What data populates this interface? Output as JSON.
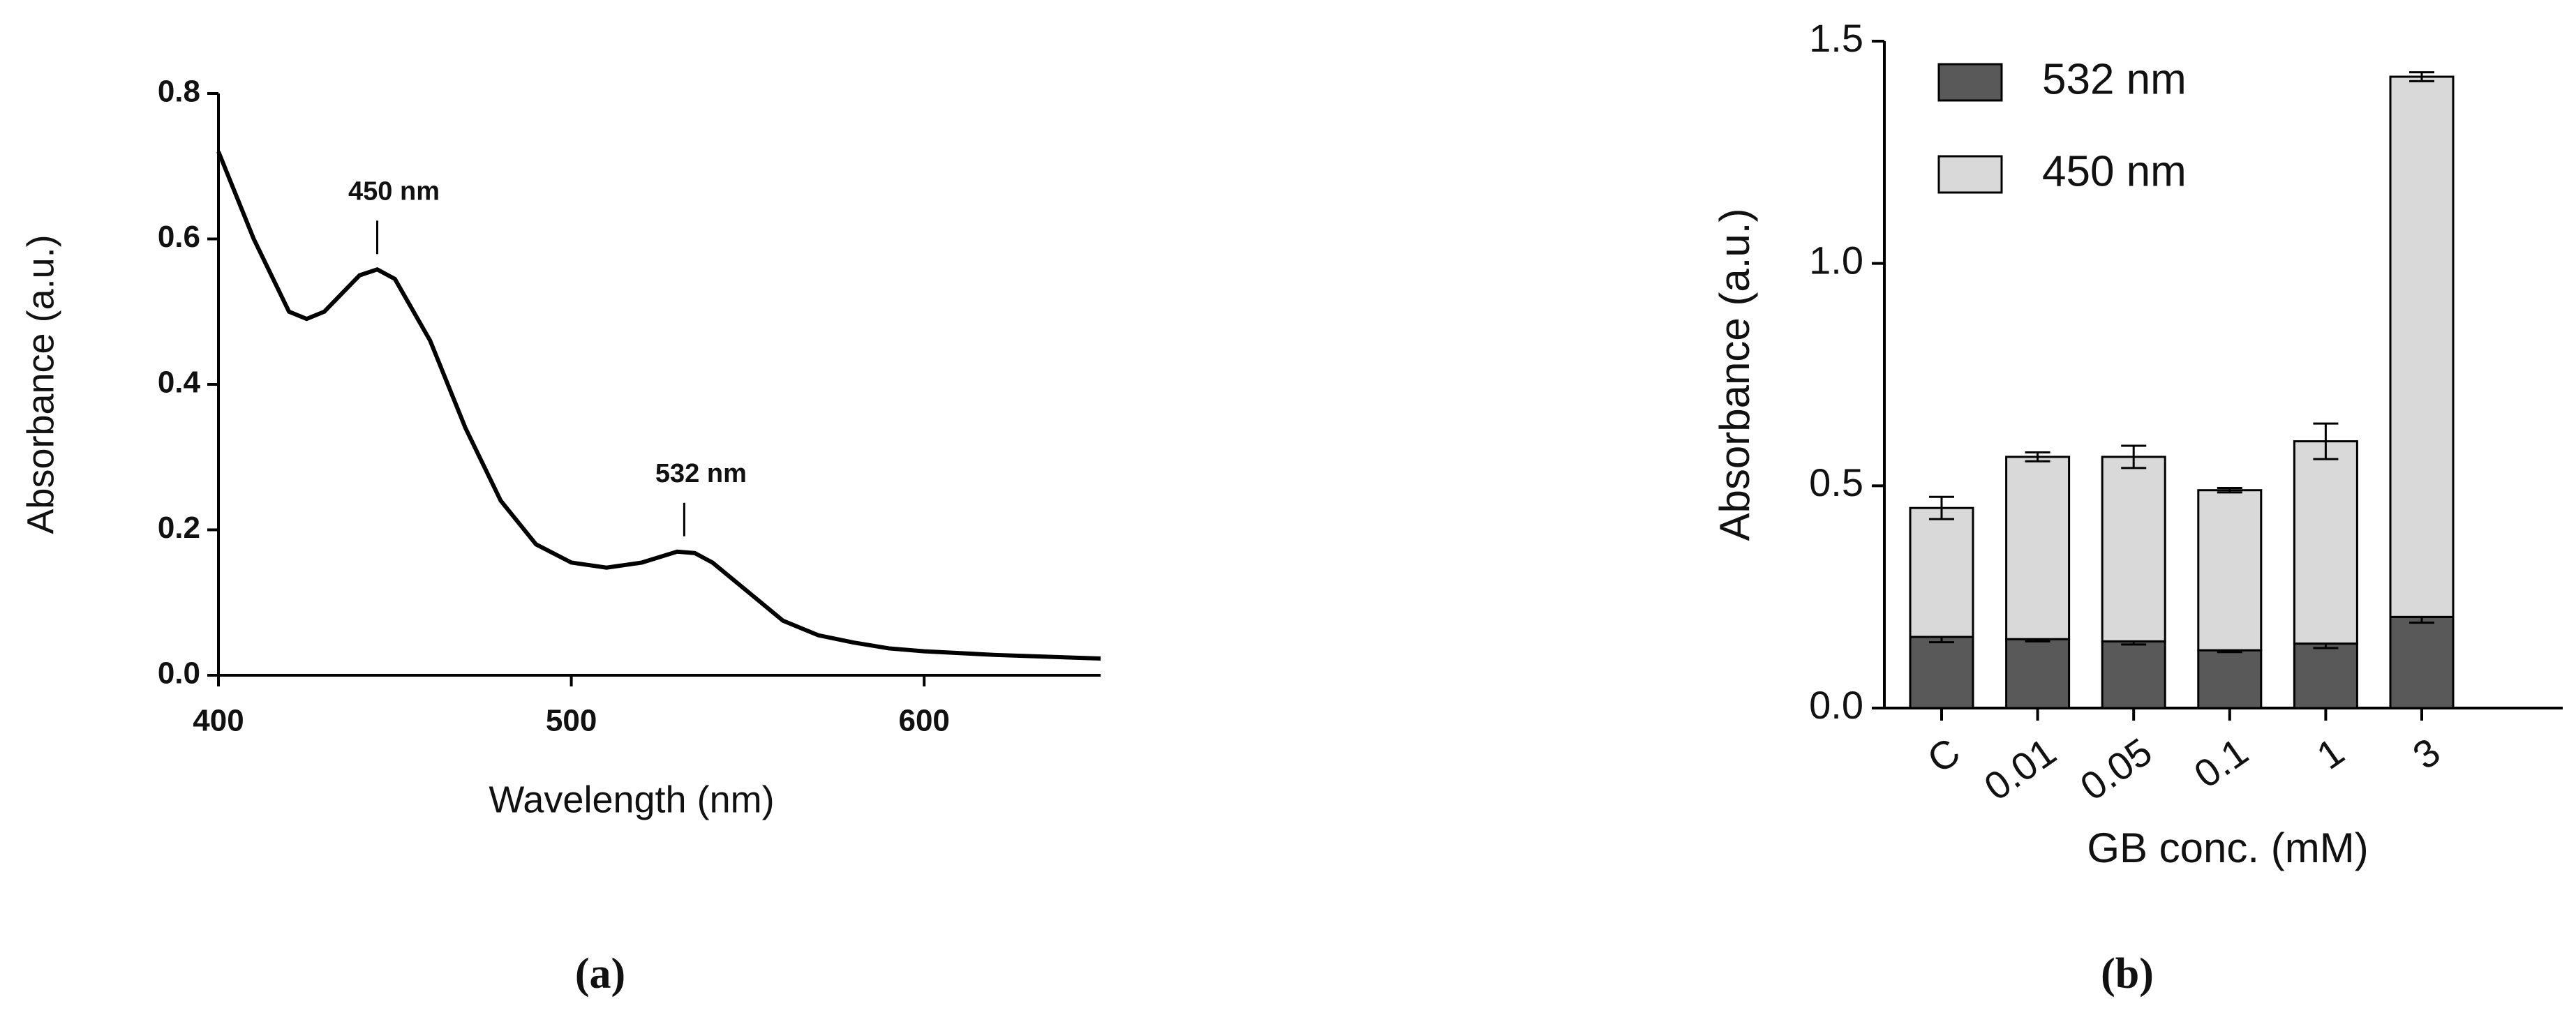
{
  "chart_data": [
    {
      "type": "line",
      "panel_label": "(a)",
      "x_label": "Wavelength (nm)",
      "y_label": "Absorbance (a.u.)",
      "x": [
        400,
        410,
        420,
        425,
        430,
        440,
        445,
        450,
        460,
        470,
        480,
        490,
        500,
        510,
        520,
        530,
        535,
        540,
        550,
        560,
        570,
        580,
        590,
        600,
        620,
        650
      ],
      "series": [
        {
          "color": "#000000",
          "values": [
            0.72,
            0.6,
            0.5,
            0.49,
            0.5,
            0.55,
            0.558,
            0.545,
            0.46,
            0.34,
            0.24,
            0.18,
            0.155,
            0.148,
            0.155,
            0.17,
            0.168,
            0.155,
            0.115,
            0.075,
            0.055,
            0.045,
            0.037,
            0.033,
            0.028,
            0.023
          ]
        }
      ],
      "annotations": [
        {
          "text": "450 nm",
          "x": 445,
          "y": 0.558
        },
        {
          "text": "532 nm",
          "x": 532,
          "y": 0.17
        }
      ],
      "xlim": [
        400,
        650
      ],
      "ylim": [
        0,
        0.8
      ],
      "xticks": [
        400,
        500,
        600
      ],
      "yticks": [
        {
          "value": 0,
          "label": "0.0"
        },
        0.2,
        0.4,
        0.6,
        0.8
      ]
    },
    {
      "type": "stacked_bar",
      "panel_label": "(b)",
      "x_label": "GB conc. (mM)",
      "y_label": "Absorbance (a.u.)",
      "categories": [
        "C",
        "0.01",
        "0.05",
        "0.1",
        "1",
        "3"
      ],
      "series": [
        {
          "name": "532 nm",
          "color": "#595959",
          "values": [
            0.16,
            0.155,
            0.15,
            0.13,
            0.145,
            0.205
          ],
          "errors": [
            0.012,
            0.005,
            0.007,
            0.004,
            0.01,
            0.013
          ]
        },
        {
          "name": "450 nm",
          "color": "#d9d9d9",
          "values": [
            0.29,
            0.41,
            0.415,
            0.36,
            0.455,
            1.215
          ],
          "errors": [
            0.025,
            0.01,
            0.025,
            0.005,
            0.04,
            0.01
          ]
        }
      ],
      "ylim": [
        0,
        1.5
      ],
      "yticks": [
        {
          "value": 0,
          "label": "0.0"
        },
        0.5,
        {
          "value": 1,
          "label": "1.0"
        },
        {
          "value": 1.5,
          "label": "1.5"
        }
      ],
      "legend": "upper-left"
    }
  ]
}
